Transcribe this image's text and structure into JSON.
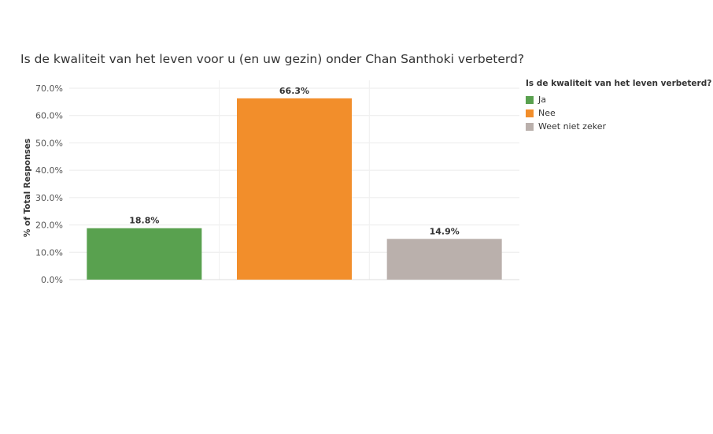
{
  "chart_data": {
    "type": "bar",
    "title": "Is de kwaliteit van het leven voor u (en uw gezin) onder Chan Santhoki verbeterd?",
    "ylabel": "% of Total Responses",
    "xlabel": "",
    "categories": [
      "Ja",
      "Nee",
      "Weet niet zeker"
    ],
    "values": [
      18.8,
      66.3,
      14.9
    ],
    "data_labels": [
      "18.8%",
      "66.3%",
      "14.9%"
    ],
    "colors": [
      "#59a14f",
      "#f28e2b",
      "#bab0ac"
    ],
    "ylim": [
      0,
      70
    ],
    "yticks": [
      0,
      10,
      20,
      30,
      40,
      50,
      60,
      70
    ],
    "ytick_labels": [
      "0.0%",
      "10.0%",
      "20.0%",
      "30.0%",
      "40.0%",
      "50.0%",
      "60.0%",
      "70.0%"
    ],
    "grid": true,
    "legend": {
      "title": "Is de kwaliteit van het leven verbeterd?",
      "position": "right",
      "items": [
        {
          "label": "Ja",
          "color": "#59a14f"
        },
        {
          "label": "Nee",
          "color": "#f28e2b"
        },
        {
          "label": "Weet niet zeker",
          "color": "#bab0ac"
        }
      ]
    }
  }
}
